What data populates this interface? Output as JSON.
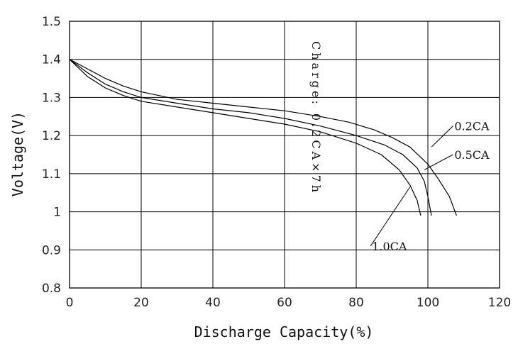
{
  "chart_data": {
    "type": "line",
    "title": "",
    "xlabel": "Discharge Capacity(%)",
    "ylabel": "Voltage(V)",
    "xlim": [
      0,
      120
    ],
    "ylim": [
      0.8,
      1.5
    ],
    "x_ticks": [
      "0",
      "20",
      "40",
      "60",
      "80",
      "100",
      "120"
    ],
    "y_ticks": [
      "0.8",
      "0.9",
      "1",
      "1.1",
      "1.2",
      "1.3",
      "1.4",
      "1.5"
    ],
    "grid": true,
    "annotation": "Charge: 0.2CA×7h",
    "series": [
      {
        "name": "0.2CA",
        "x": [
          0,
          5,
          10,
          15,
          20,
          30,
          40,
          50,
          60,
          70,
          78,
          85,
          90,
          95,
          100,
          103,
          106,
          108
        ],
        "y": [
          1.4,
          1.375,
          1.35,
          1.33,
          1.315,
          1.295,
          1.285,
          1.275,
          1.265,
          1.25,
          1.235,
          1.215,
          1.195,
          1.17,
          1.125,
          1.085,
          1.04,
          0.99
        ]
      },
      {
        "name": "0.5CA",
        "x": [
          0,
          5,
          10,
          15,
          20,
          30,
          40,
          50,
          60,
          70,
          80,
          88,
          93,
          97,
          99,
          100,
          101
        ],
        "y": [
          1.4,
          1.365,
          1.335,
          1.315,
          1.3,
          1.285,
          1.27,
          1.26,
          1.245,
          1.225,
          1.2,
          1.175,
          1.15,
          1.115,
          1.08,
          1.04,
          0.99
        ]
      },
      {
        "name": "1.0CA",
        "x": [
          0,
          5,
          10,
          15,
          20,
          30,
          40,
          50,
          60,
          70,
          80,
          87,
          92,
          95,
          97,
          98
        ],
        "y": [
          1.4,
          1.355,
          1.325,
          1.305,
          1.29,
          1.275,
          1.26,
          1.245,
          1.23,
          1.21,
          1.18,
          1.15,
          1.11,
          1.07,
          1.03,
          0.99
        ]
      }
    ],
    "series_labels": [
      {
        "text": "0.2CA",
        "at": [
          107,
          1.225
        ],
        "to": [
          101,
          1.17
        ]
      },
      {
        "text": "0.5CA",
        "at": [
          107,
          1.15
        ],
        "to": [
          99,
          1.11
        ]
      },
      {
        "text": "1.0CA",
        "at": [
          84,
          0.91
        ],
        "to": [
          95,
          1.065
        ]
      }
    ]
  }
}
